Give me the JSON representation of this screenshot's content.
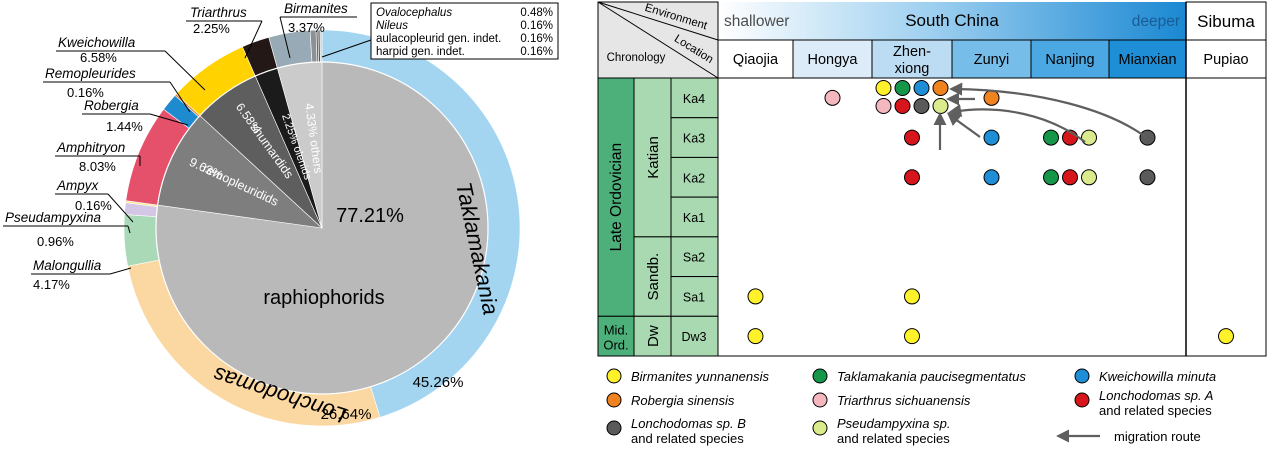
{
  "chart_data": [
    {
      "type": "pie",
      "inner": {
        "slices": [
          {
            "label": "raphiophorids",
            "pct_label": "77.21%",
            "value": 77.21,
            "color": "#b9b9b9"
          },
          {
            "label": "remopleuridids",
            "pct_label": "9.63%",
            "value": 9.63,
            "color": "#7e7e7e"
          },
          {
            "label": "shumardids",
            "pct_label": "6.58%",
            "value": 6.58,
            "color": "#5e5e5e"
          },
          {
            "label": "olenids",
            "pct_label": "2.25%",
            "value": 2.25,
            "color": "#1b1b1b"
          },
          {
            "label": "others",
            "pct_label": "4.33%",
            "value": 4.33,
            "color": "#cbcbcb"
          }
        ]
      },
      "outer": {
        "slices": [
          {
            "label": "Taklamakania",
            "pct_label": "45.26%",
            "value": 45.26,
            "color": "#a3d5f1"
          },
          {
            "label": "Lonchodomas",
            "pct_label": "26.64%",
            "value": 26.64,
            "color": "#fbd8a2"
          },
          {
            "label": "Malongullia",
            "pct_label": "4.17%",
            "value": 4.17,
            "color": "#a9d9b7"
          },
          {
            "label": "Pseudampyxina",
            "pct_label": "0.96%",
            "value": 0.96,
            "color": "#d4c7e6"
          },
          {
            "label": "Ampyx",
            "pct_label": "0.16%",
            "value": 0.16,
            "color": "#fbe78a"
          },
          {
            "label": "Amphitryon",
            "pct_label": "8.03%",
            "value": 8.03,
            "color": "#e5506b"
          },
          {
            "label": "Robergia",
            "pct_label": "1.44%",
            "value": 1.44,
            "color": "#1e8bcf"
          },
          {
            "label": "Remopleurides",
            "pct_label": "0.16%",
            "value": 0.16,
            "color": "#e07a2e"
          },
          {
            "label": "Kweichowilla",
            "pct_label": "6.58%",
            "value": 6.58,
            "color": "#ffd200"
          },
          {
            "label": "Triarthrus",
            "pct_label": "2.25%",
            "value": 2.25,
            "color": "#231815"
          },
          {
            "label": "Birmanites",
            "pct_label": "3.37%",
            "value": 3.37,
            "color": "#97aab6"
          },
          {
            "label": "Ovalocephalus",
            "pct_label": "0.48%",
            "value": 0.48,
            "color": "#8c9196"
          },
          {
            "label": "Nileus",
            "pct_label": "0.16%",
            "value": 0.16,
            "color": "#6c6c6c"
          },
          {
            "label": "aulacopleurid gen. indet.",
            "pct_label": "0.16%",
            "value": 0.16,
            "color": "#545454"
          },
          {
            "label": "harpid gen. indet.",
            "pct_label": "0.16%",
            "value": 0.16,
            "color": "#c8c8c8"
          }
        ]
      }
    },
    {
      "type": "table",
      "header": {
        "environment": "Environment",
        "location": "Location",
        "chronology": "Chronology",
        "shallower": "shallower",
        "south_china": "South China",
        "deeper": "deeper",
        "sibuma": "Sibuma"
      },
      "locations": [
        {
          "name": "Qiaojia",
          "color": "#ffffff"
        },
        {
          "name": "Hongya",
          "color": "#dcecf8"
        },
        {
          "name": "Zhen-\nxiong",
          "color": "#bcdcf3"
        },
        {
          "name": "Zunyi",
          "color": "#76bde9"
        },
        {
          "name": "Nanjing",
          "color": "#4ba8e2"
        },
        {
          "name": "Mianxian",
          "color": "#1e8fd6"
        },
        {
          "name": "Pupiao",
          "color": "#ffffff"
        }
      ],
      "periods": [
        {
          "label": "Late Ordovician",
          "color": "#4db07a"
        },
        {
          "label": "Mid.\nOrd.",
          "color": "#4db07a"
        }
      ],
      "stages": [
        {
          "label": "Katian",
          "color": "#a8d9b0"
        },
        {
          "label": "Sandb.",
          "color": "#a8d9b0"
        },
        {
          "label": "Dw",
          "color": "#a8d9b0"
        }
      ],
      "rows": [
        "Ka4",
        "Ka3",
        "Ka2",
        "Ka1",
        "Sa2",
        "Sa1",
        "Dw3"
      ],
      "species": [
        {
          "key": "bir",
          "name": "Birmanites yunnanensis",
          "color": "#fff22a"
        },
        {
          "key": "tak",
          "name": "Taklamakania paucisegmentatus",
          "color": "#169648"
        },
        {
          "key": "kwe",
          "name": "Kweichowilla minuta",
          "color": "#1e8fd6"
        },
        {
          "key": "rob",
          "name": "Robergia sinensis",
          "color": "#f08220"
        },
        {
          "key": "tri",
          "name": "Triarthrus sichuanensis",
          "color": "#f4b7bd"
        },
        {
          "key": "lonA",
          "name": "Lonchodomas sp. A",
          "name2": "and related species",
          "color": "#d7151c"
        },
        {
          "key": "lonB",
          "name": "Lonchodomas sp. B",
          "name2": "and related species",
          "color": "#5a5a5a"
        },
        {
          "key": "pse",
          "name": "Pseudampyxina sp.",
          "name2": "and related species",
          "color": "#d9eb8c"
        }
      ],
      "occurrences": [
        {
          "row": "Ka4",
          "loc": "Hongya",
          "species": [
            "tri"
          ]
        },
        {
          "row": "Ka4",
          "loc": "Zhen-xiong",
          "species": [
            "bir",
            "tak",
            "kwe",
            "rob"
          ]
        },
        {
          "row": "Ka4",
          "loc": "Zhen-xiong",
          "species": [
            "tri",
            "lonA",
            "lonB",
            "pse"
          ]
        },
        {
          "row": "Ka4",
          "loc": "Zunyi",
          "species": [
            "rob"
          ]
        },
        {
          "row": "Ka3",
          "loc": "Zhen-xiong",
          "species": [
            "lonA"
          ]
        },
        {
          "row": "Ka3",
          "loc": "Zunyi",
          "species": [
            "kwe"
          ]
        },
        {
          "row": "Ka3",
          "loc": "Nanjing",
          "species": [
            "tak",
            "lonA",
            "pse"
          ]
        },
        {
          "row": "Ka3",
          "loc": "Mianxian",
          "species": [
            "lonB"
          ]
        },
        {
          "row": "Ka2",
          "loc": "Zhen-xiong",
          "species": [
            "lonA"
          ]
        },
        {
          "row": "Ka2",
          "loc": "Zunyi",
          "species": [
            "kwe"
          ]
        },
        {
          "row": "Ka2",
          "loc": "Nanjing",
          "species": [
            "tak",
            "lonA",
            "pse"
          ]
        },
        {
          "row": "Ka2",
          "loc": "Mianxian",
          "species": [
            "lonB"
          ]
        },
        {
          "row": "Sa1",
          "loc": "Qiaojia",
          "species": [
            "bir"
          ]
        },
        {
          "row": "Sa1",
          "loc": "Zhen-xiong",
          "species": [
            "bir"
          ]
        },
        {
          "row": "Dw3",
          "loc": "Qiaojia",
          "species": [
            "bir"
          ]
        },
        {
          "row": "Dw3",
          "loc": "Zhen-xiong",
          "species": [
            "bir"
          ]
        },
        {
          "row": "Dw3",
          "loc": "Pupiao",
          "species": [
            "bir"
          ]
        }
      ],
      "legend_migration": "migration route"
    }
  ]
}
